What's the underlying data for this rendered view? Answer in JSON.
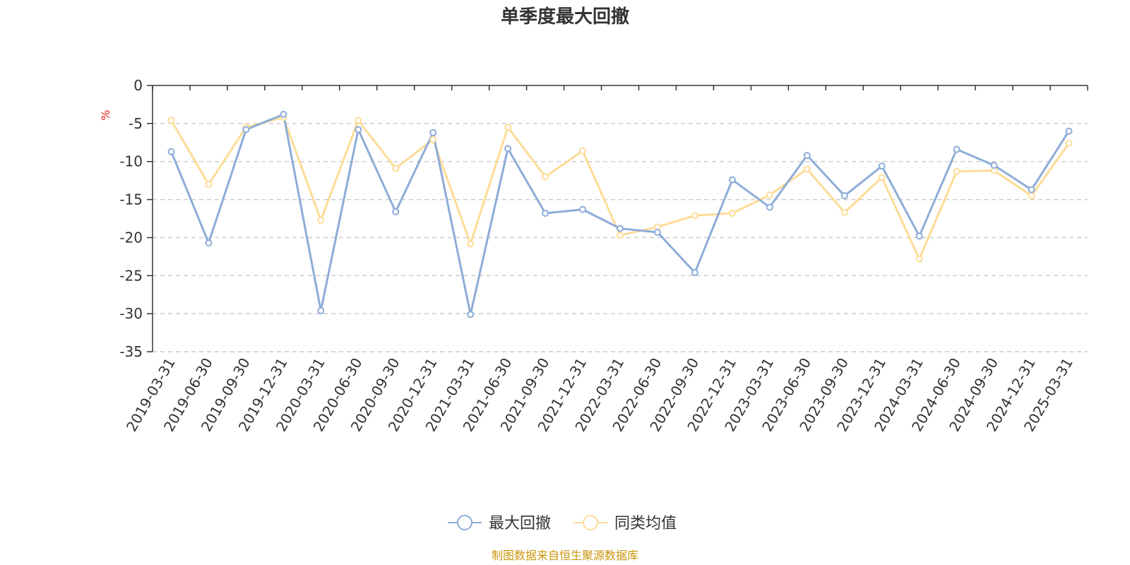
{
  "chart_data": {
    "type": "line",
    "title": "单季度最大回撤",
    "ylabel": "%",
    "xlabel": "",
    "ylim": [
      -35,
      0
    ],
    "yticks": [
      0,
      -5,
      -10,
      -15,
      -20,
      -25,
      -30,
      -35
    ],
    "grid": true,
    "legend_position": "bottom-center",
    "categories": [
      "2019-03-31",
      "2019-06-30",
      "2019-09-30",
      "2019-12-31",
      "2020-03-31",
      "2020-06-30",
      "2020-09-30",
      "2020-12-31",
      "2021-03-31",
      "2021-06-30",
      "2021-09-30",
      "2021-12-31",
      "2022-03-31",
      "2022-06-30",
      "2022-09-30",
      "2022-12-31",
      "2023-03-31",
      "2023-06-30",
      "2023-09-30",
      "2023-12-31",
      "2024-03-31",
      "2024-06-30",
      "2024-09-30",
      "2024-12-31",
      "2025-03-31"
    ],
    "series": [
      {
        "name": "最大回撤",
        "color": "#8eacd8",
        "values": [
          -8.7,
          -20.7,
          -5.8,
          -3.8,
          -29.6,
          -5.8,
          -16.6,
          -6.2,
          -30.1,
          -8.3,
          -16.8,
          -16.3,
          -18.8,
          -19.3,
          -24.6,
          -12.4,
          -16.0,
          -9.2,
          -14.5,
          -10.6,
          -19.8,
          -8.4,
          -10.5,
          -13.7,
          -6.0
        ]
      },
      {
        "name": "同类均值",
        "color": "#fddc97",
        "values": [
          -4.6,
          -13.0,
          -5.5,
          -4.2,
          -17.7,
          -4.6,
          -10.9,
          -7.1,
          -20.8,
          -5.5,
          -12.0,
          -8.6,
          -19.7,
          -18.6,
          -17.1,
          -16.8,
          -14.4,
          -11.0,
          -16.7,
          -12.1,
          -22.8,
          -11.3,
          -11.2,
          -14.5,
          -7.6
        ]
      }
    ],
    "unit_color": "#e8201e",
    "axis_color": "#333333",
    "grid_color": "#cccccc"
  },
  "source": {
    "text": "制图数据来自恒生聚源数据库",
    "color": "#c8960c"
  }
}
